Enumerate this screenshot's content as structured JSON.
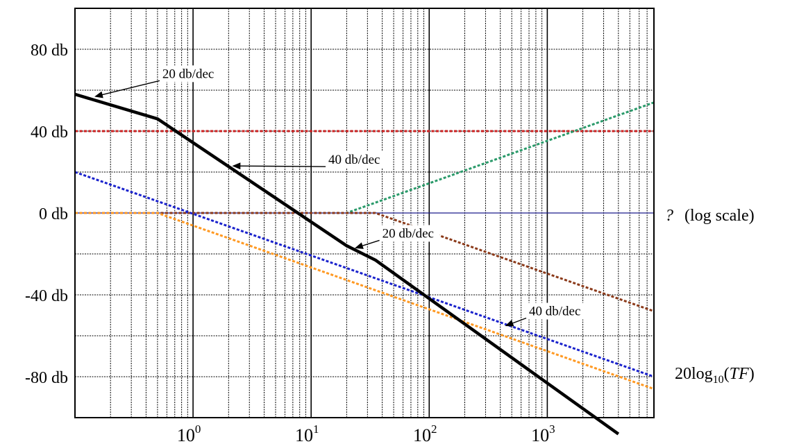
{
  "chart_data": {
    "type": "line",
    "x_scale": "log",
    "xlim": [
      0.1,
      8000
    ],
    "ylim": [
      -100,
      100
    ],
    "grid": true,
    "y_tick_labels": [
      {
        "value": 80,
        "label": "80 db"
      },
      {
        "value": 40,
        "label": "40 db"
      },
      {
        "value": 0,
        "label": "0 db"
      },
      {
        "value": -40,
        "label": "-40 db"
      },
      {
        "value": -80,
        "label": "-80 db"
      }
    ],
    "x_tick_labels": [
      {
        "value": 1,
        "base": "10",
        "exp": "0"
      },
      {
        "value": 10,
        "base": "10",
        "exp": "1"
      },
      {
        "value": 100,
        "base": "10",
        "exp": "2"
      },
      {
        "value": 1000,
        "base": "10",
        "exp": "3"
      }
    ],
    "axis_label_x": {
      "symbol": "?",
      "text": "(log scale)"
    },
    "axis_label_y": {
      "prefix": "20log",
      "sub": "10",
      "open": "(",
      "italic": "TF",
      "close": ")"
    },
    "series": [
      {
        "color": "#000000",
        "style": "solid",
        "x": [
          0.1,
          0.5,
          20,
          35,
          4000
        ],
        "y": [
          58,
          46,
          -16,
          -23,
          -108
        ]
      },
      {
        "color": "#cc2222",
        "style": "dotted",
        "x": [
          0.1,
          8000
        ],
        "y": [
          40,
          40
        ]
      },
      {
        "color": "#2a9a6a",
        "style": "dotted",
        "x": [
          0.1,
          20,
          8000
        ],
        "y": [
          0,
          0,
          54
        ]
      },
      {
        "color": "#8b3a1a",
        "style": "dotted",
        "x": [
          0.1,
          35,
          8000
        ],
        "y": [
          0,
          0,
          -48
        ]
      },
      {
        "color": "#1a22cc",
        "style": "dotted",
        "x": [
          0.1,
          8000
        ],
        "y": [
          20,
          -80
        ]
      },
      {
        "color": "#ff9922",
        "style": "dotted",
        "x": [
          0.1,
          0.5,
          8000
        ],
        "y": [
          0,
          0,
          -86
        ]
      },
      {
        "color": "#1a1a8a",
        "style": "solid-thin",
        "x": [
          0.1,
          8000
        ],
        "y": [
          0,
          0
        ]
      }
    ],
    "annotations": [
      {
        "text": "20 db/dec",
        "tx": 0.55,
        "ty": 66,
        "ax": 0.15,
        "ay": 57
      },
      {
        "text": "40 db/dec",
        "tx": 14,
        "ty": 24,
        "ax": 2.2,
        "ay": 23
      },
      {
        "text": "20 db/dec",
        "tx": 40,
        "ty": -12,
        "ax": 24,
        "ay": -17
      },
      {
        "text": "40 db/dec",
        "tx": 700,
        "ty": -50,
        "ax": 450,
        "ay": -55
      }
    ]
  }
}
